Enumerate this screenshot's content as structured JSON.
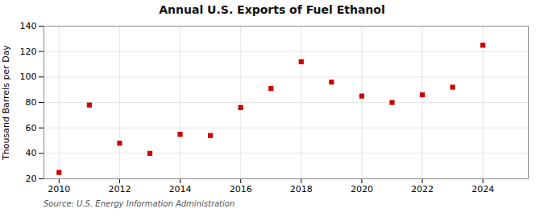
{
  "chart_data": {
    "type": "scatter",
    "title": "Annual U.S. Exports of Fuel Ethanol",
    "ylabel": "Thousand Barrels per Day",
    "source": "Source: U.S. Energy Information Administration",
    "x": [
      2010,
      2011,
      2012,
      2013,
      2014,
      2015,
      2016,
      2017,
      2018,
      2019,
      2020,
      2021,
      2022,
      2023,
      2024
    ],
    "values": [
      25,
      78,
      48,
      40,
      55,
      54,
      76,
      91,
      112,
      96,
      85,
      80,
      86,
      92,
      125
    ],
    "color": "#cc0000",
    "marker": "square",
    "xlim": [
      2009.5,
      2025.5
    ],
    "ylim": [
      20,
      140
    ],
    "xticks": [
      2010,
      2012,
      2014,
      2016,
      2018,
      2020,
      2022,
      2024
    ],
    "yticks": [
      20,
      40,
      60,
      80,
      100,
      120,
      140
    ],
    "grid": true
  }
}
